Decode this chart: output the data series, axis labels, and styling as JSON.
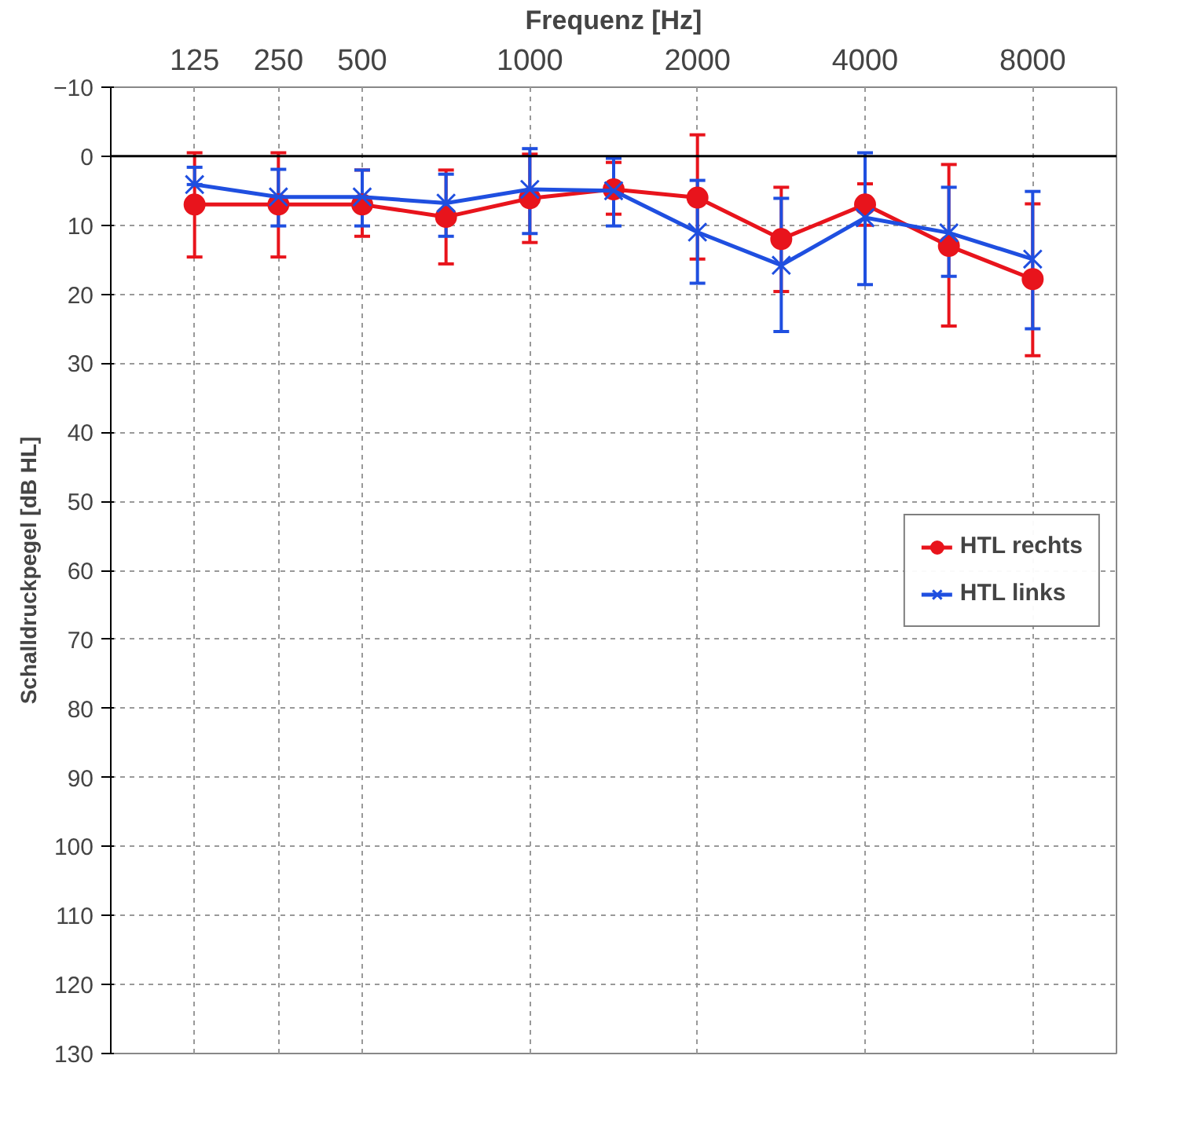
{
  "chart_data": {
    "type": "line",
    "xlabel": "Frequenz [Hz]",
    "ylabel": "Schalldruckpegel [dB HL]",
    "categories": [
      "125",
      "250",
      "500",
      null,
      "1000",
      null,
      "2000",
      null,
      "4000",
      null,
      "8000"
    ],
    "ylim": [
      130,
      -10
    ],
    "yticks": [
      -10,
      0,
      10,
      20,
      30,
      40,
      50,
      60,
      70,
      80,
      90,
      100,
      110,
      120,
      130
    ],
    "grid": true,
    "legend": "right",
    "ref_lines": [
      {
        "axis": "y",
        "value": 0,
        "color": "#000000"
      }
    ],
    "series": [
      {
        "name": "HTL rechts",
        "color": "#e8141c",
        "marker": "circle",
        "values": [
          7,
          7,
          7,
          8.8,
          6.1,
          4.8,
          6,
          12,
          7,
          13,
          17.8
        ],
        "errors": [
          [
            -0.5,
            14.6
          ],
          [
            -0.5,
            14.6
          ],
          [
            2,
            11.6
          ],
          [
            2,
            15.6
          ],
          [
            -0.3,
            12.5
          ],
          [
            0.9,
            8.4
          ],
          [
            -3.1,
            14.9
          ],
          [
            4.5,
            19.6
          ],
          [
            4,
            10
          ],
          [
            1.2,
            24.6
          ],
          [
            6.9,
            28.9
          ]
        ]
      },
      {
        "name": "HTL links",
        "color": "#1f4fe0",
        "marker": "cross",
        "values": [
          4.1,
          5.9,
          5.9,
          6.8,
          4.8,
          5,
          11,
          15.8,
          8.9,
          11.1,
          14.9
        ],
        "errors": [
          [
            1.6,
            4.1
          ],
          [
            1.9,
            10.1
          ],
          [
            2,
            10.1
          ],
          [
            2.6,
            11.6
          ],
          [
            -1.1,
            11.2
          ],
          [
            0.3,
            10.1
          ],
          [
            3.5,
            18.4
          ],
          [
            6.1,
            25.4
          ],
          [
            -0.5,
            18.6
          ],
          [
            4.5,
            17.4
          ],
          [
            5.1,
            25
          ]
        ]
      }
    ]
  }
}
